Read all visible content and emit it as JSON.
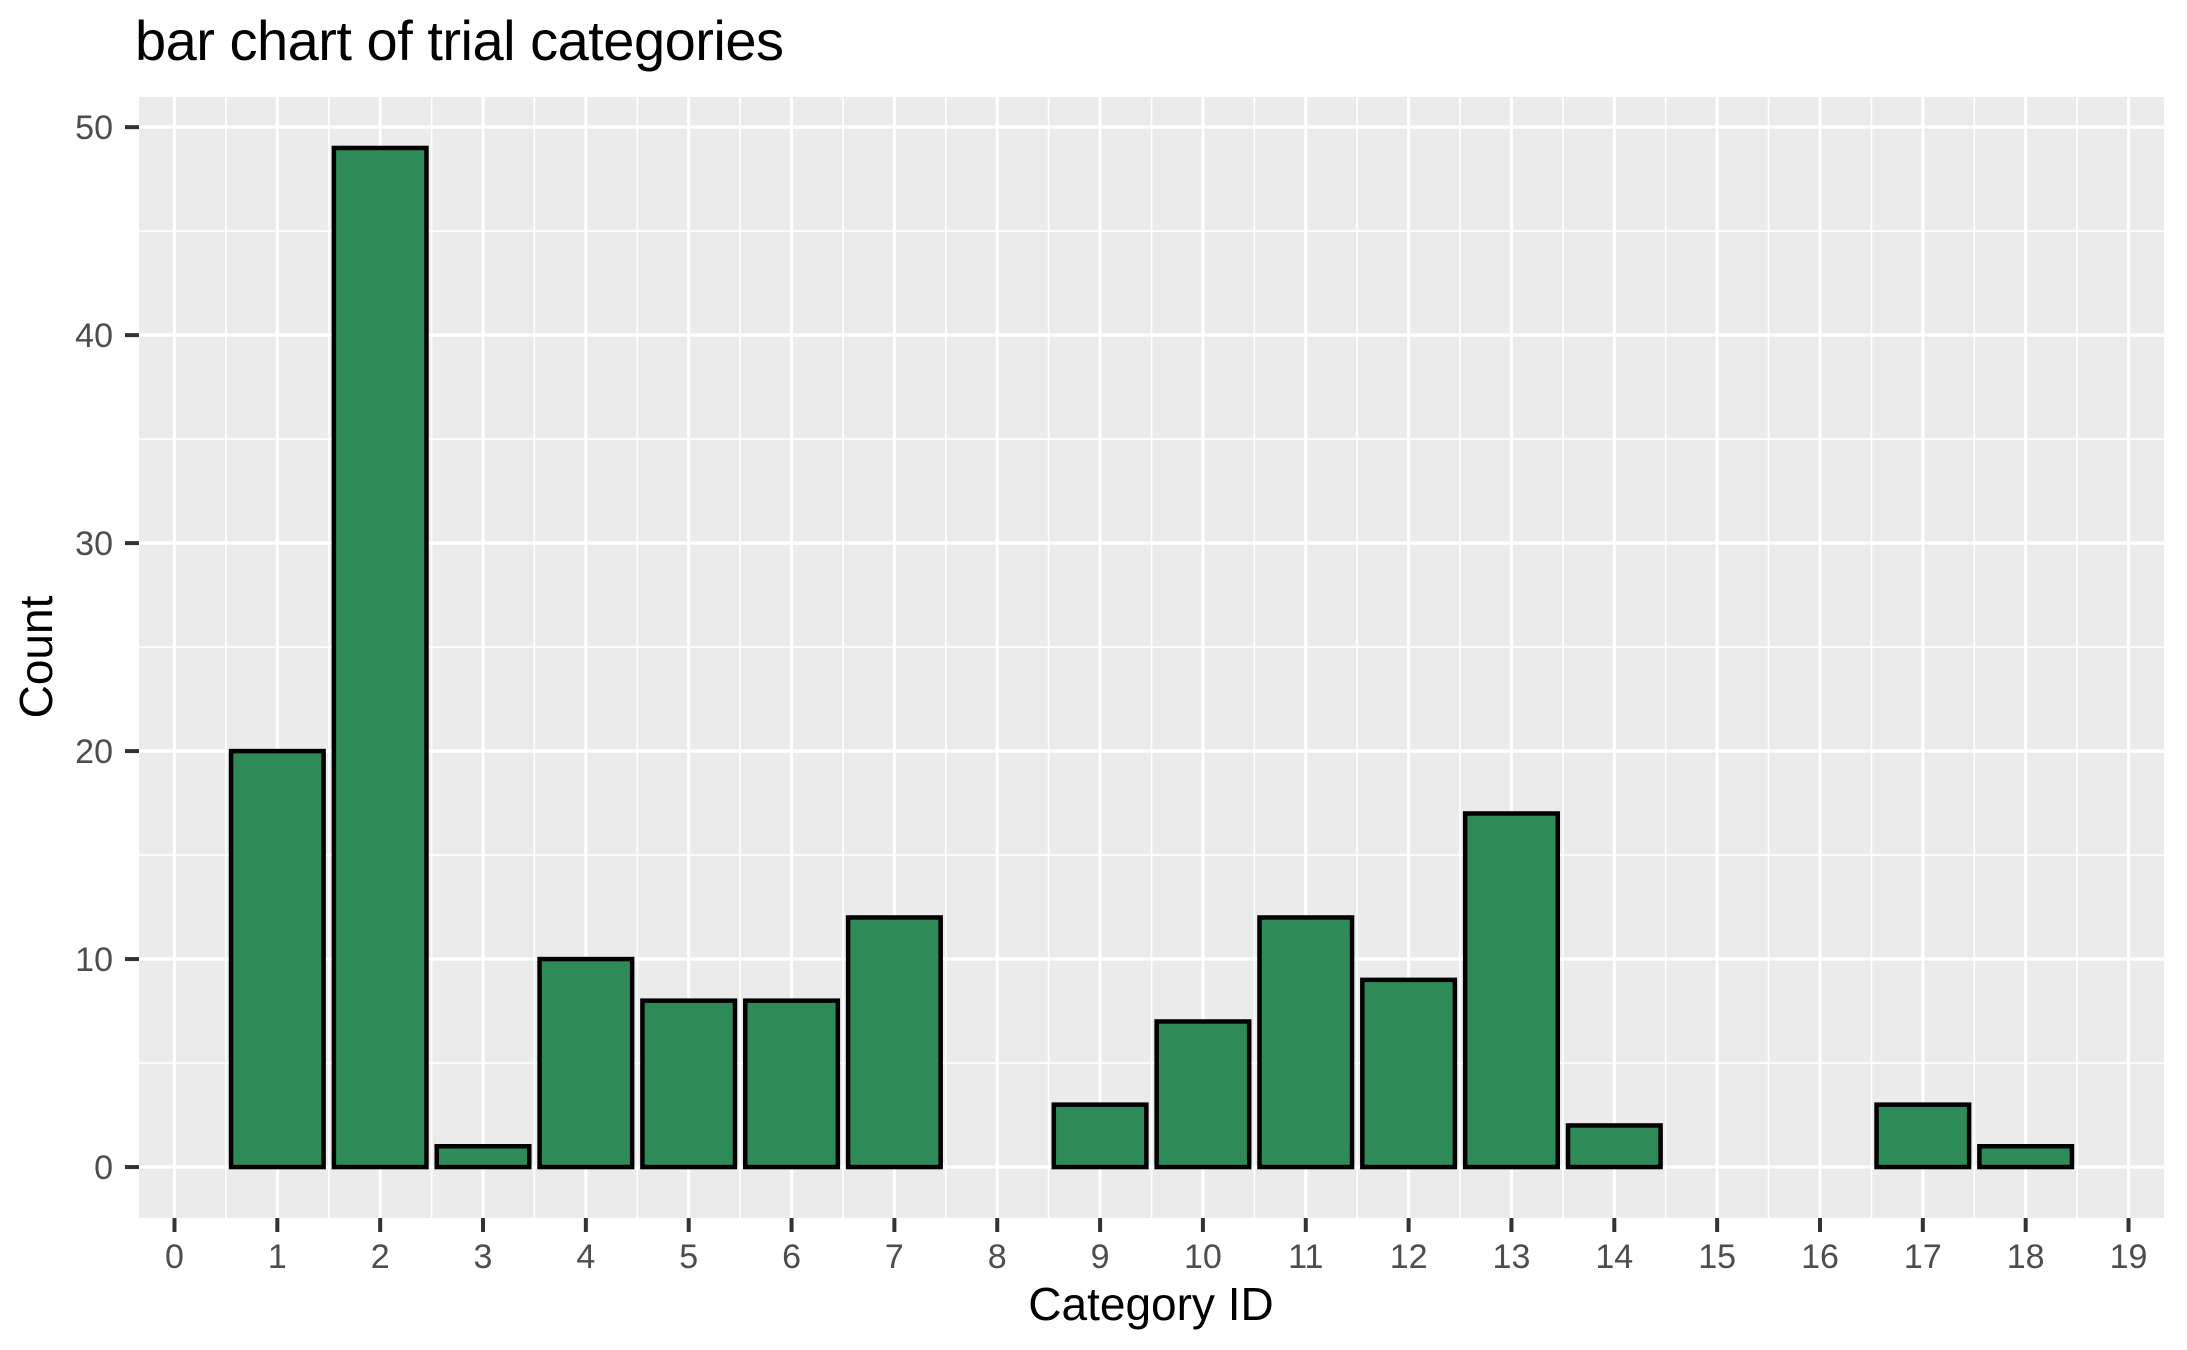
{
  "chart_data": {
    "type": "bar",
    "title": "bar chart of trial categories",
    "xlabel": "Category ID",
    "ylabel": "Count",
    "categories": [
      0,
      1,
      2,
      3,
      4,
      5,
      6,
      7,
      8,
      9,
      10,
      11,
      12,
      13,
      14,
      15,
      16,
      17,
      18,
      19
    ],
    "values": [
      0,
      20,
      49,
      1,
      10,
      8,
      8,
      12,
      0,
      3,
      7,
      12,
      9,
      17,
      2,
      0,
      0,
      3,
      1,
      0
    ],
    "x_ticks": [
      0,
      1,
      2,
      3,
      4,
      5,
      6,
      7,
      8,
      9,
      10,
      11,
      12,
      13,
      14,
      15,
      16,
      17,
      18,
      19
    ],
    "y_ticks": [
      0,
      10,
      20,
      30,
      40,
      50
    ],
    "y_minor_ticks": [
      5,
      15,
      25,
      35,
      45
    ],
    "xlim": [
      -0.345,
      19.345
    ],
    "ylim": [
      -2.45,
      51.45
    ],
    "bar_width": 0.9,
    "grid": true,
    "legend_position": "none",
    "colors": {
      "bar_fill": "#2e8b57",
      "bar_stroke": "#000000",
      "panel_bg": "#ebebeb",
      "grid_major": "#ffffff",
      "grid_minor": "#ffffff",
      "tick_mark": "#333333",
      "tick_label": "#4d4d4d",
      "axis_title": "#000000",
      "title": "#000000",
      "background": "#ffffff"
    }
  }
}
